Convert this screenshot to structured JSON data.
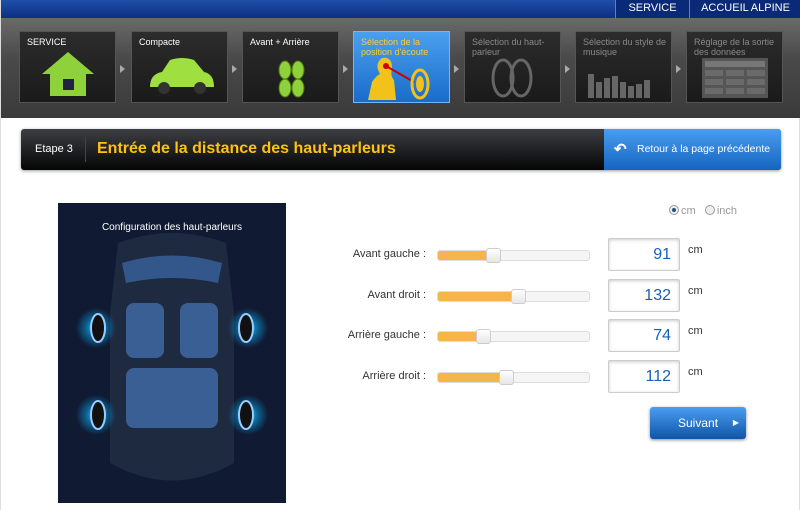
{
  "topnav": {
    "service": "SERVICE",
    "home": "ACCUEIL ALPINE"
  },
  "steps": [
    {
      "label": "SERVICE",
      "icon": "house-icon",
      "state": "done"
    },
    {
      "label": "Compacte",
      "icon": "car-icon",
      "state": "done"
    },
    {
      "label": "Avant + Arrière",
      "icon": "speakers-icon",
      "state": "done"
    },
    {
      "label": "Sélection de la position d'écoute",
      "icon": "listener-icon",
      "state": "active"
    },
    {
      "label": "Sélection du haut-parleur",
      "icon": "speaker-icon",
      "state": "disabled"
    },
    {
      "label": "Sélection du style de musique",
      "icon": "equalizer-icon",
      "state": "disabled"
    },
    {
      "label": "Réglage de la sortie des données",
      "icon": "table-icon",
      "state": "disabled"
    }
  ],
  "header": {
    "step": "Etape 3",
    "title": "Entrée de la distance des haut-parleurs",
    "back": "Retour à la page précédente"
  },
  "car_panel": {
    "title": "Configuration des haut-parleurs"
  },
  "units": {
    "options": [
      "cm",
      "inch"
    ],
    "selected": "cm"
  },
  "slider_max": 250,
  "rows": [
    {
      "label": "Avant gauche :",
      "value": "91",
      "unit": "cm"
    },
    {
      "label": "Avant droit :",
      "value": "132",
      "unit": "cm"
    },
    {
      "label": "Arrière gauche :",
      "value": "74",
      "unit": "cm"
    },
    {
      "label": "Arrière droit :",
      "value": "112",
      "unit": "cm"
    }
  ],
  "next": "Suivant",
  "colors": {
    "accent": "#ffc20e",
    "blue": "#1a6cc9",
    "slider": "#f5b54a"
  }
}
